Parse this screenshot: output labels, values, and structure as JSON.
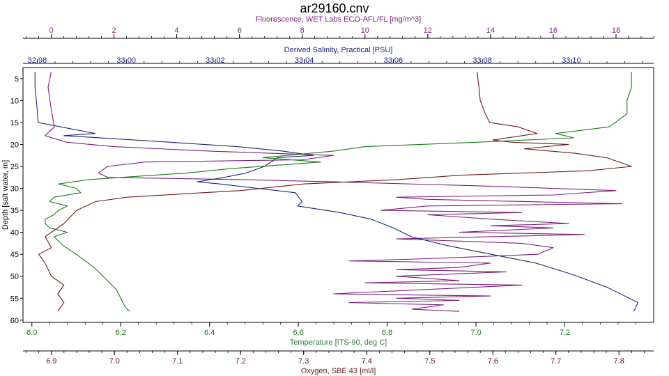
{
  "chart_data": {
    "type": "line",
    "title": "ar29160.cnv",
    "y_axis": {
      "label": "Depth [salt water, m]",
      "ticks": [
        5,
        10,
        15,
        20,
        25,
        30,
        35,
        40,
        45,
        50,
        55,
        60
      ],
      "range": [
        2.5,
        60.5
      ],
      "color": "#000000"
    },
    "x_axes": [
      {
        "key": "fluorescence",
        "label": "Fluorescence, WET Labs ECO-AFL/FL [mg/m^3]",
        "ticks": [
          0,
          2,
          4,
          6,
          8,
          10,
          12,
          14,
          16,
          18
        ],
        "range": [
          -0.9,
          19.2
        ],
        "color": "#7b1f7b"
      },
      {
        "key": "salinity",
        "label": "Derived Salinity, Practical [PSU]",
        "ticks": [
          "32,98",
          "33,00",
          "33,02",
          "33,04",
          "33,06",
          "33,08",
          "33,10"
        ],
        "tick_values": [
          32.98,
          33.0,
          33.02,
          33.04,
          33.06,
          33.08,
          33.1
        ],
        "range": [
          32.9768,
          33.1185
        ],
        "color": "#1a237e"
      },
      {
        "key": "temperature",
        "label": "Temperature [ITS-90, deg C]",
        "ticks": [
          "6.0",
          "6.2",
          "6.4",
          "6.6",
          "6.8",
          "7.0",
          "7.2"
        ],
        "tick_values": [
          6.0,
          6.2,
          6.4,
          6.6,
          6.8,
          7.0,
          7.2
        ],
        "range": [
          5.98,
          7.4
        ]
      },
      {
        "key": "oxygen",
        "label": "Oxygen, SBE 43 [ml/l]",
        "ticks": [
          "6.9",
          "7.0",
          "7.1",
          "7.2",
          "7.3",
          "7.4",
          "7.5",
          "7.6",
          "7.7",
          "7.8"
        ],
        "tick_values": [
          6.9,
          7.0,
          7.1,
          7.2,
          7.3,
          7.4,
          7.5,
          7.6,
          7.7,
          7.8
        ],
        "range": [
          6.855,
          7.855
        ],
        "color": "#6b1a1a"
      }
    ],
    "temperature_label_color": "#2e7d32",
    "temperature_tick_color": "#1b7a1b",
    "series": [
      {
        "axis": "fluorescence",
        "color": "#7b1f7b",
        "points": [
          [
            0,
            3.5
          ],
          [
            -0.1,
            7
          ],
          [
            0,
            12
          ],
          [
            0.1,
            16
          ],
          [
            -0.2,
            18
          ],
          [
            0.5,
            19.5
          ],
          [
            2,
            20.5
          ],
          [
            5,
            21.5
          ],
          [
            9,
            22.5
          ],
          [
            8,
            23.5
          ],
          [
            3,
            24
          ],
          [
            1.8,
            25
          ],
          [
            1.5,
            26.5
          ],
          [
            1.8,
            27.5
          ],
          [
            6,
            28
          ],
          [
            9,
            28.5
          ],
          [
            14,
            29.5
          ],
          [
            18,
            30.5
          ],
          [
            16,
            31.5
          ],
          [
            11,
            32
          ],
          [
            12,
            32.5
          ],
          [
            18.2,
            33.5
          ],
          [
            12,
            34
          ],
          [
            10.5,
            35
          ],
          [
            15,
            35.5
          ],
          [
            12,
            36
          ],
          [
            14,
            37
          ],
          [
            16.5,
            38
          ],
          [
            14,
            38.5
          ],
          [
            16,
            39
          ],
          [
            13,
            40
          ],
          [
            17,
            40.5
          ],
          [
            14,
            41
          ],
          [
            11,
            41.5
          ],
          [
            15,
            42.5
          ],
          [
            16,
            43.5
          ],
          [
            15.5,
            45
          ],
          [
            12,
            46
          ],
          [
            9.5,
            46.5
          ],
          [
            14,
            47
          ],
          [
            13,
            48
          ],
          [
            11,
            48.5
          ],
          [
            14.5,
            49
          ],
          [
            11,
            50
          ],
          [
            13,
            51
          ],
          [
            10,
            51.5
          ],
          [
            15,
            52
          ],
          [
            12,
            53
          ],
          [
            9,
            54
          ],
          [
            14,
            54.5
          ],
          [
            11,
            55
          ],
          [
            13,
            55.5
          ],
          [
            9.5,
            56
          ],
          [
            12.5,
            56.5
          ],
          [
            11.5,
            57.5
          ],
          [
            13,
            58
          ]
        ]
      },
      {
        "axis": "salinity",
        "color": "#1a237e",
        "points": [
          [
            32.9795,
            3.5
          ],
          [
            32.9795,
            7
          ],
          [
            32.98,
            12
          ],
          [
            32.9802,
            15
          ],
          [
            32.993,
            17.5
          ],
          [
            32.986,
            18
          ],
          [
            33.01,
            19.5
          ],
          [
            33.025,
            20.5
          ],
          [
            33.035,
            21.5
          ],
          [
            33.042,
            22.5
          ],
          [
            33.034,
            23
          ],
          [
            33.031,
            25
          ],
          [
            33.027,
            26.5
          ],
          [
            33.022,
            27.5
          ],
          [
            33.016,
            28.5
          ],
          [
            33.021,
            29
          ],
          [
            33.038,
            31
          ],
          [
            33.0395,
            33
          ],
          [
            33.0385,
            34
          ],
          [
            33.048,
            35.5
          ],
          [
            33.055,
            37
          ],
          [
            33.06,
            39
          ],
          [
            33.064,
            41
          ],
          [
            33.072,
            43
          ],
          [
            33.082,
            45
          ],
          [
            33.092,
            47
          ],
          [
            33.1,
            49.5
          ],
          [
            33.108,
            52.5
          ],
          [
            33.115,
            56
          ],
          [
            33.114,
            58
          ]
        ]
      },
      {
        "axis": "temperature",
        "color": "#1b7a1b",
        "points": [
          [
            7.35,
            3.5
          ],
          [
            7.35,
            7
          ],
          [
            7.34,
            10
          ],
          [
            7.34,
            13
          ],
          [
            7.3,
            16
          ],
          [
            7.18,
            17.5
          ],
          [
            7.22,
            18.5
          ],
          [
            7.0,
            19.5
          ],
          [
            6.75,
            20.5
          ],
          [
            6.68,
            21.5
          ],
          [
            6.52,
            23
          ],
          [
            6.65,
            24
          ],
          [
            6.45,
            25.5
          ],
          [
            6.35,
            26.5
          ],
          [
            6.2,
            27.5
          ],
          [
            6.13,
            28
          ],
          [
            6.06,
            29
          ],
          [
            6.1,
            30
          ],
          [
            6.11,
            31
          ],
          [
            6.05,
            32
          ],
          [
            6.04,
            33
          ],
          [
            6.08,
            34
          ],
          [
            6.06,
            35
          ],
          [
            6.05,
            36
          ],
          [
            6.03,
            37
          ],
          [
            6.03,
            38
          ],
          [
            6.04,
            39
          ],
          [
            6.08,
            40
          ],
          [
            6.05,
            41
          ],
          [
            6.07,
            43
          ],
          [
            6.1,
            45
          ],
          [
            6.14,
            48
          ],
          [
            6.17,
            51
          ],
          [
            6.19,
            53
          ],
          [
            6.2,
            55
          ],
          [
            6.21,
            57
          ],
          [
            6.22,
            58
          ]
        ]
      },
      {
        "axis": "oxygen",
        "color": "#6b1a1a",
        "points": [
          [
            7.575,
            3.5
          ],
          [
            7.578,
            7
          ],
          [
            7.58,
            10
          ],
          [
            7.588,
            13
          ],
          [
            7.595,
            15
          ],
          [
            7.64,
            16
          ],
          [
            7.67,
            17.5
          ],
          [
            7.6,
            19
          ],
          [
            7.63,
            19.5
          ],
          [
            7.72,
            20
          ],
          [
            7.65,
            21
          ],
          [
            7.73,
            22
          ],
          [
            7.78,
            23
          ],
          [
            7.82,
            25
          ],
          [
            7.75,
            26
          ],
          [
            7.55,
            27
          ],
          [
            7.45,
            28
          ],
          [
            7.3,
            29
          ],
          [
            7.2,
            30.5
          ],
          [
            7.14,
            31
          ],
          [
            7.02,
            32
          ],
          [
            6.97,
            33
          ],
          [
            6.94,
            35
          ],
          [
            6.92,
            38
          ],
          [
            6.89,
            41
          ],
          [
            6.9,
            43.5
          ],
          [
            6.88,
            45
          ],
          [
            6.89,
            47
          ],
          [
            6.9,
            50
          ],
          [
            6.92,
            52
          ],
          [
            6.91,
            54
          ],
          [
            6.92,
            56
          ],
          [
            6.91,
            58
          ]
        ]
      }
    ],
    "grid": false,
    "legend": "none"
  }
}
